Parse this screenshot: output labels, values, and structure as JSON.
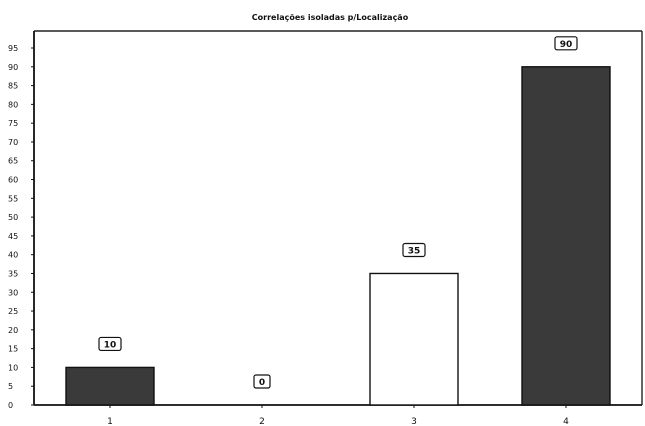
{
  "chart_data": {
    "type": "bar",
    "title": "Correlações isoladas p/Localização",
    "xlabel": "",
    "ylabel": "",
    "categories": [
      "1",
      "2",
      "3",
      "4"
    ],
    "values": [
      10,
      0,
      35,
      90
    ],
    "data_labels": [
      "10",
      "0",
      "35",
      "90"
    ],
    "bar_fills": [
      "#3a3a3a",
      "#3a3a3a",
      "#ffffff",
      "#3a3a3a"
    ],
    "ylim": [
      0,
      95
    ],
    "yticks": [
      0,
      5,
      10,
      15,
      20,
      25,
      30,
      35,
      40,
      45,
      50,
      55,
      60,
      65,
      70,
      75,
      80,
      85,
      90,
      95
    ],
    "ytick_labels": [
      "0",
      "5",
      "10",
      "15",
      "20",
      "25",
      "30",
      "35",
      "40",
      "45",
      "50",
      "55",
      "60",
      "65",
      "70",
      "75",
      "80",
      "85",
      "90",
      "95"
    ],
    "grid": false,
    "legend": "none"
  }
}
